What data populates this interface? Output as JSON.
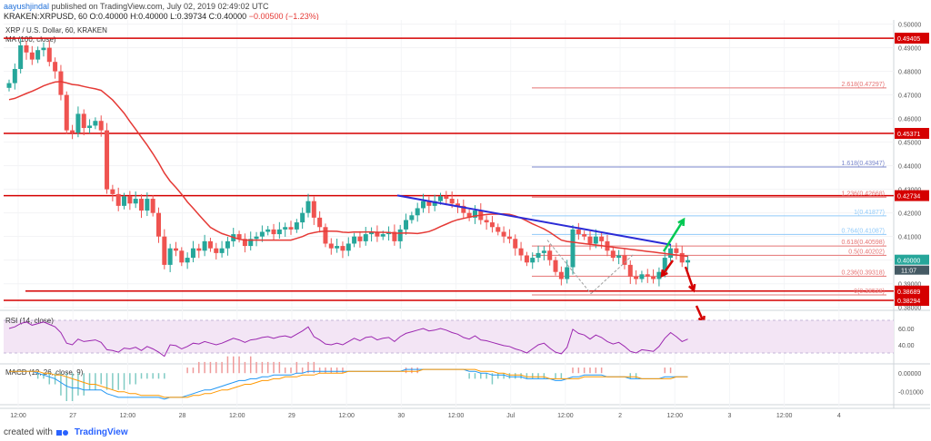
{
  "header": {
    "username": "aayushjindal",
    "published_text": "published on TradingView.com, July 02, 2019 02:49:02 UTC",
    "symbol_line": "KRAKEN:XRPUSD, 60",
    "ohlc": "O:0.40000 H:0.40000 L:0.39734 C:0.40000",
    "change": "−0.00500 (−1.23%)"
  },
  "footer": {
    "created_with": "created with",
    "brand": "TradingView"
  },
  "colors": {
    "up": "#26a69a",
    "down": "#ef5350",
    "ma": "#e53935",
    "trendline": "#2b2bd6",
    "hline": "#d50000",
    "fib": "#e57373",
    "fib_blue": "#7986cb",
    "arrow_up": "#00c853",
    "arrow_down": "#d50000",
    "rsi": "#9c27b0",
    "macd": "#2196f3",
    "signal": "#ff9800",
    "pink_bg": "#f3e5f5"
  },
  "chart_data": [
    {
      "type": "candlestick",
      "title": "XRP / U.S. Dollar, 60, KRAKEN",
      "indicator": "MA (100, close)",
      "ylim": [
        0.3795,
        0.501
      ],
      "y_ticks": [
        "0.50000",
        "0.49000",
        "0.48000",
        "0.47000",
        "0.46000",
        "0.45000",
        "0.44000",
        "0.43000",
        "0.42000",
        "0.41000",
        "0.40000",
        "0.39000",
        "0.38000"
      ],
      "x_ticks": [
        "12:00",
        "27",
        "12:00",
        "28",
        "12:00",
        "29",
        "12:00",
        "30",
        "12:00",
        "Jul",
        "12:00",
        "2",
        "12:00",
        "3",
        "12:00",
        "4"
      ],
      "price_levels": [
        {
          "value": 0.49405,
          "label": "0.49405"
        },
        {
          "value": 0.45371,
          "label": "0.45371"
        },
        {
          "value": 0.42734,
          "label": "0.42734"
        },
        {
          "value": 0.38689,
          "label": "0.38689"
        },
        {
          "value": 0.38294,
          "label": "0.38294"
        }
      ],
      "current_price": {
        "value": 0.4,
        "label": "0.40000",
        "countdown": "11:07"
      },
      "fib_levels": [
        {
          "ratio": "2.618",
          "label": "2.618(0.47297)",
          "value": 0.47297
        },
        {
          "ratio": "1.618",
          "label": "1.618(0.43947)",
          "value": 0.43947
        },
        {
          "ratio": "1.236",
          "label": "1.236(0.42668)",
          "value": 0.42668
        },
        {
          "ratio": "1",
          "label": "1(0.41877)",
          "value": 0.41877
        },
        {
          "ratio": "0.764",
          "label": "0.764(0.41087)",
          "value": 0.41087
        },
        {
          "ratio": "0.618",
          "label": "0.618(0.40598)",
          "value": 0.40598
        },
        {
          "ratio": "0.5",
          "label": "0.5(0.40202)",
          "value": 0.40202
        },
        {
          "ratio": "0.236",
          "label": "0.236(0.39318)",
          "value": 0.39318
        },
        {
          "ratio": "0",
          "label": "0(0.38528)",
          "value": 0.38528
        }
      ],
      "close": [
        0.475,
        0.481,
        0.491,
        0.488,
        0.485,
        0.489,
        0.49,
        0.484,
        0.48,
        0.47,
        0.455,
        0.454,
        0.462,
        0.456,
        0.457,
        0.459,
        0.455,
        0.43,
        0.428,
        0.423,
        0.427,
        0.424,
        0.426,
        0.421,
        0.426,
        0.42,
        0.41,
        0.398,
        0.405,
        0.404,
        0.399,
        0.401,
        0.405,
        0.404,
        0.408,
        0.405,
        0.403,
        0.405,
        0.408,
        0.411,
        0.409,
        0.406,
        0.409,
        0.41,
        0.412,
        0.413,
        0.411,
        0.413,
        0.414,
        0.413,
        0.416,
        0.42,
        0.425,
        0.418,
        0.414,
        0.407,
        0.405,
        0.406,
        0.404,
        0.407,
        0.41,
        0.408,
        0.411,
        0.412,
        0.41,
        0.411,
        0.412,
        0.408,
        0.413,
        0.417,
        0.419,
        0.422,
        0.425,
        0.423,
        0.425,
        0.427,
        0.426,
        0.424,
        0.423,
        0.42,
        0.418,
        0.421,
        0.417,
        0.416,
        0.414,
        0.412,
        0.41,
        0.409,
        0.405,
        0.402,
        0.399,
        0.401,
        0.403,
        0.404,
        0.4,
        0.395,
        0.392,
        0.397,
        0.413,
        0.411,
        0.41,
        0.407,
        0.41,
        0.408,
        0.404,
        0.401,
        0.402,
        0.398,
        0.393,
        0.392,
        0.394,
        0.393,
        0.392,
        0.395,
        0.401,
        0.405,
        0.403,
        0.399,
        0.4
      ]
    },
    {
      "type": "line",
      "indicator": "RSI (14, close)",
      "ylim": [
        20,
        80
      ],
      "y_ticks": [
        "60.00",
        "40.00"
      ],
      "values": [
        60,
        62,
        66,
        68,
        64,
        66,
        68,
        65,
        62,
        55,
        42,
        40,
        47,
        44,
        45,
        46,
        43,
        34,
        33,
        31,
        36,
        35,
        37,
        33,
        38,
        35,
        31,
        26,
        40,
        39,
        35,
        38,
        42,
        41,
        44,
        42,
        40,
        42,
        45,
        48,
        46,
        43,
        46,
        47,
        49,
        50,
        48,
        50,
        51,
        49,
        53,
        57,
        62,
        50,
        46,
        41,
        40,
        42,
        40,
        44,
        48,
        45,
        49,
        50,
        46,
        48,
        49,
        44,
        50,
        54,
        56,
        58,
        60,
        57,
        58,
        60,
        58,
        55,
        53,
        49,
        47,
        51,
        46,
        45,
        43,
        41,
        39,
        38,
        35,
        33,
        30,
        35,
        40,
        42,
        36,
        31,
        29,
        37,
        59,
        54,
        52,
        47,
        52,
        49,
        44,
        41,
        43,
        38,
        32,
        30,
        34,
        33,
        32,
        38,
        48,
        55,
        50,
        44,
        47
      ]
    },
    {
      "type": "line",
      "indicator": "MACD (12, 26, close, 9)",
      "y_ticks": [
        "0.00000",
        "-0.01000"
      ],
      "ylim": [
        -0.015,
        0.004
      ],
      "macd": [
        0.001,
        0.001,
        0.001,
        0.001,
        0.001,
        0.0,
        -0.001,
        -0.002,
        -0.003,
        -0.005,
        -0.007,
        -0.008,
        -0.008,
        -0.009,
        -0.009,
        -0.009,
        -0.009,
        -0.011,
        -0.012,
        -0.013,
        -0.013,
        -0.013,
        -0.013,
        -0.013,
        -0.013,
        -0.013,
        -0.013,
        -0.014,
        -0.013,
        -0.013,
        -0.013,
        -0.012,
        -0.011,
        -0.01,
        -0.009,
        -0.009,
        -0.008,
        -0.007,
        -0.006,
        -0.005,
        -0.004,
        -0.004,
        -0.003,
        -0.003,
        -0.002,
        -0.002,
        -0.001,
        -0.001,
        -0.001,
        -0.001,
        0.0,
        0.0,
        0.001,
        0.001,
        0.001,
        0.001,
        0.001,
        0.001,
        0.001,
        0.001,
        0.001,
        0.001,
        0.001,
        0.001,
        0.001,
        0.001,
        0.001,
        0.001,
        0.001,
        0.002,
        0.002,
        0.002,
        0.002,
        0.002,
        0.002,
        0.002,
        0.002,
        0.002,
        0.002,
        0.002,
        0.001,
        0.001,
        0.0,
        0.0,
        -0.001,
        -0.001,
        -0.001,
        -0.002,
        -0.002,
        -0.002,
        -0.003,
        -0.003,
        -0.003,
        -0.003,
        -0.003,
        -0.004,
        -0.004,
        -0.003,
        -0.002,
        -0.002,
        -0.001,
        -0.001,
        -0.001,
        -0.001,
        -0.002,
        -0.002,
        -0.002,
        -0.002,
        -0.003,
        -0.003,
        -0.003,
        -0.003,
        -0.003,
        -0.003,
        -0.002,
        -0.002,
        -0.002,
        -0.002,
        -0.002
      ],
      "signal": [
        0.001,
        0.001,
        0.001,
        0.001,
        0.001,
        0.001,
        0.0,
        0.0,
        -0.001,
        -0.001,
        -0.002,
        -0.003,
        -0.004,
        -0.005,
        -0.006,
        -0.006,
        -0.007,
        -0.008,
        -0.009,
        -0.01,
        -0.01,
        -0.011,
        -0.011,
        -0.012,
        -0.012,
        -0.012,
        -0.012,
        -0.013,
        -0.013,
        -0.013,
        -0.013,
        -0.013,
        -0.012,
        -0.012,
        -0.011,
        -0.011,
        -0.01,
        -0.009,
        -0.009,
        -0.008,
        -0.007,
        -0.006,
        -0.006,
        -0.005,
        -0.004,
        -0.004,
        -0.003,
        -0.003,
        -0.002,
        -0.002,
        -0.002,
        -0.001,
        -0.001,
        -0.001,
        0.0,
        0.0,
        0.0,
        0.0,
        0.0,
        0.001,
        0.001,
        0.001,
        0.001,
        0.001,
        0.001,
        0.001,
        0.001,
        0.001,
        0.001,
        0.001,
        0.001,
        0.001,
        0.002,
        0.002,
        0.002,
        0.002,
        0.002,
        0.002,
        0.002,
        0.002,
        0.002,
        0.002,
        0.001,
        0.001,
        0.001,
        0.0,
        0.0,
        -0.001,
        -0.001,
        -0.001,
        -0.002,
        -0.002,
        -0.002,
        -0.002,
        -0.003,
        -0.003,
        -0.003,
        -0.003,
        -0.003,
        -0.003,
        -0.002,
        -0.002,
        -0.002,
        -0.002,
        -0.002,
        -0.002,
        -0.002,
        -0.002,
        -0.002,
        -0.002,
        -0.003,
        -0.003,
        -0.003,
        -0.003,
        -0.003,
        -0.003,
        -0.002,
        -0.002,
        -0.002
      ]
    }
  ]
}
